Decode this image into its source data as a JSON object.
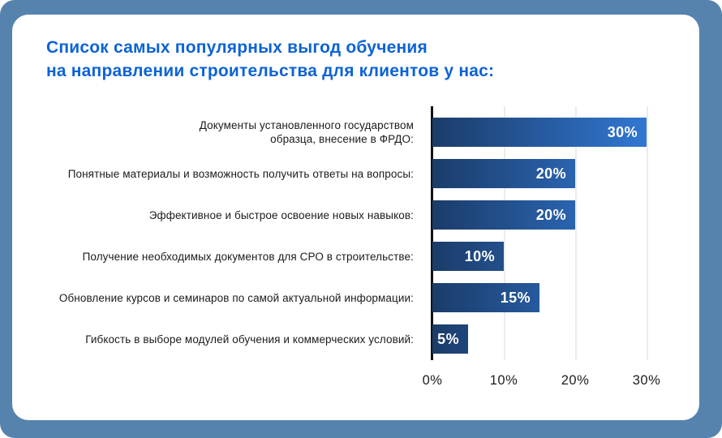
{
  "card": {
    "title_line1": "Список самых популярных выгод обучения",
    "title_line2": "на направлении строительства для клиентов у нас:"
  },
  "colors": {
    "frame": "#5583AD",
    "card_bg": "#FFFFFF",
    "title": "#0D63D4",
    "bar_start": "#1B3C69",
    "bar_end": "#3177D2",
    "grid": "#ECECEC",
    "axis": "#141414",
    "label": "#1B1B1B",
    "value_text": "#FFFFFF"
  },
  "chart_data": {
    "type": "bar",
    "orientation": "horizontal",
    "title": "Список самых популярных выгод обучения на направлении строительства для клиентов у нас:",
    "categories": [
      "Документы установленного государством\nобразца, внесение в ФРДО:",
      "Понятные материалы и возможность получить ответы на вопросы:",
      "Эффективное и быстрое освоение новых навыков:",
      "Получение необходимых документов для СРО в строительстве:",
      "Обновление курсов и семинаров по самой актуальной информации:",
      "Гибкость в выборе модулей обучения и коммерческих условий:"
    ],
    "values": [
      30,
      20,
      20,
      10,
      15,
      5
    ],
    "value_labels": [
      "30%",
      "20%",
      "20%",
      "10%",
      "15%",
      "5%"
    ],
    "xlabel": "",
    "ylabel": "",
    "x_ticks": [
      0,
      10,
      20,
      30
    ],
    "x_tick_labels": [
      "0%",
      "10%",
      "20%",
      "30%"
    ],
    "xlim": [
      0,
      35.5
    ],
    "grid": true,
    "legend": false,
    "bar_color_gradient": [
      "#1B3C69",
      "#3177D2"
    ]
  }
}
